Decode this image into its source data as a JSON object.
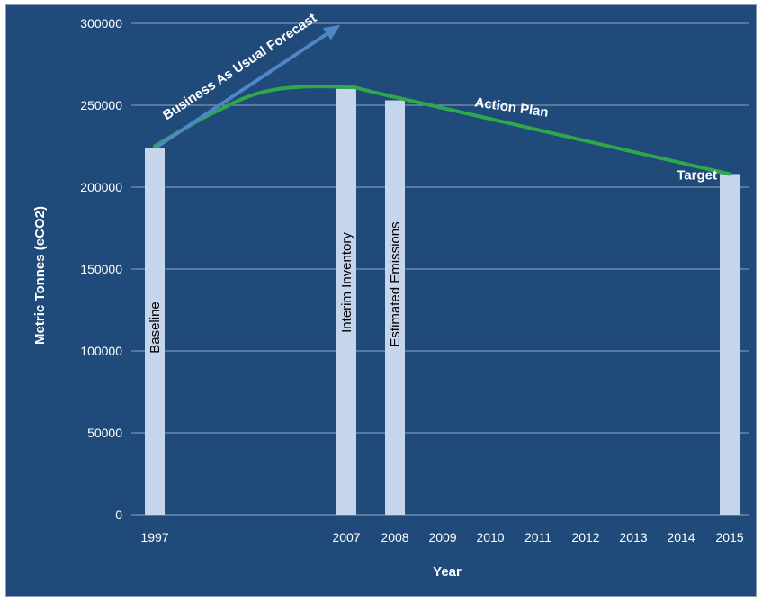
{
  "chart_data": {
    "type": "bar",
    "title": "",
    "xlabel": "Year",
    "ylabel": "Metric Tonnes (eCO2)",
    "ylim": [
      0,
      300000
    ],
    "yticks": [
      0,
      50000,
      100000,
      150000,
      200000,
      250000,
      300000
    ],
    "grid": true,
    "categories": [
      "1997",
      "2007",
      "2008",
      "2009",
      "2010",
      "2011",
      "2012",
      "2013",
      "2014",
      "2015"
    ],
    "bars": [
      {
        "year": "1997",
        "value": 224000,
        "label": "Baseline"
      },
      {
        "year": "2007",
        "value": 260000,
        "label": "Interim Inventory"
      },
      {
        "year": "2008",
        "value": 253000,
        "label": "Estimated Emissions"
      },
      {
        "year": "2015",
        "value": 208000,
        "label": "Target"
      }
    ],
    "action_plan": {
      "name": "Action Plan",
      "points": [
        {
          "x": 1997,
          "y": 225000
        },
        {
          "x": 2000,
          "y": 245000
        },
        {
          "x": 2003,
          "y": 259000
        },
        {
          "x": 2007,
          "y": 261000
        },
        {
          "x": 2008,
          "y": 255000
        },
        {
          "x": 2015,
          "y": 208000
        }
      ]
    },
    "forecast_arrow": {
      "label": "Business As Usual Forecast",
      "from": {
        "x": 1997,
        "y": 230000
      },
      "to": {
        "x": 2007,
        "y": 300000
      }
    },
    "colors": {
      "background": "#1F4A7A",
      "bar": "#C5D5EB",
      "action_plan": "#2EA84A",
      "arrow": "#4F86C6",
      "grid": "#8fa6c4"
    }
  }
}
